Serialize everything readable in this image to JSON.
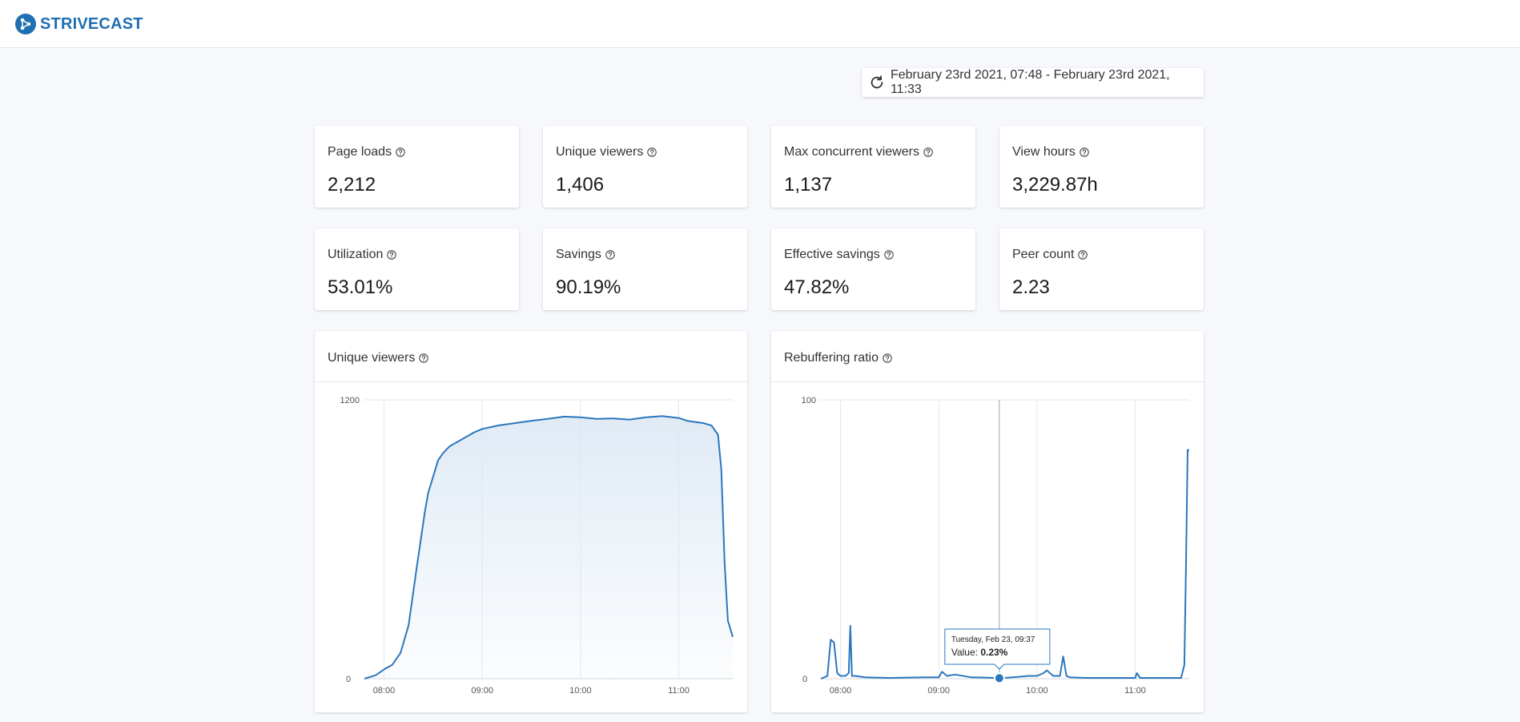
{
  "brand": {
    "name": "STRIVECAST"
  },
  "date_range": {
    "label": "February 23rd 2021, 07:48 - February 23rd 2021, 11:33",
    "icon": "refresh-icon"
  },
  "stats": [
    {
      "label": "Page loads",
      "value": "2,212"
    },
    {
      "label": "Unique viewers",
      "value": "1,406"
    },
    {
      "label": "Max concurrent viewers",
      "value": "1,137"
    },
    {
      "label": "View hours",
      "value": "3,229.87h"
    },
    {
      "label": "Utilization",
      "value": "53.01%"
    },
    {
      "label": "Savings",
      "value": "90.19%"
    },
    {
      "label": "Effective savings",
      "value": "47.82%"
    },
    {
      "label": "Peer count",
      "value": "2.23"
    }
  ],
  "colors": {
    "accent": "#1f6fb2",
    "line": "#2b77bd",
    "area": "#dbe7f3"
  },
  "chart_data": [
    {
      "type": "area",
      "title": "Unique viewers",
      "x_ticks": [
        "08:00",
        "09:00",
        "10:00",
        "11:00"
      ],
      "y_ticks": [
        "0",
        "1200"
      ],
      "ylim": [
        0,
        1200
      ],
      "xlim": [
        "07:48",
        "11:33"
      ],
      "x": [
        "07:48",
        "07:55",
        "08:00",
        "08:05",
        "08:10",
        "08:15",
        "08:20",
        "08:25",
        "08:27",
        "08:30",
        "08:33",
        "08:36",
        "08:40",
        "08:45",
        "08:50",
        "08:55",
        "09:00",
        "09:10",
        "09:20",
        "09:30",
        "09:40",
        "09:50",
        "10:00",
        "10:10",
        "10:20",
        "10:30",
        "10:40",
        "10:50",
        "11:00",
        "11:05",
        "11:10",
        "11:15",
        "11:20",
        "11:24",
        "11:26",
        "11:28",
        "11:30",
        "11:33"
      ],
      "values": [
        0,
        15,
        40,
        60,
        110,
        230,
        480,
        720,
        800,
        870,
        940,
        970,
        1000,
        1020,
        1040,
        1060,
        1075,
        1090,
        1100,
        1110,
        1118,
        1128,
        1125,
        1118,
        1120,
        1115,
        1125,
        1130,
        1122,
        1110,
        1105,
        1100,
        1090,
        1050,
        900,
        500,
        250,
        180
      ]
    },
    {
      "type": "line",
      "title": "Rebuffering ratio",
      "x_ticks": [
        "08:00",
        "09:00",
        "10:00",
        "11:00"
      ],
      "y_ticks": [
        "0",
        "100"
      ],
      "ylim": [
        0,
        100
      ],
      "xlim": [
        "07:48",
        "11:33"
      ],
      "x": [
        "07:48",
        "07:52",
        "07:54",
        "07:56",
        "07:58",
        "08:00",
        "08:03",
        "08:05",
        "08:06",
        "08:07",
        "08:09",
        "08:15",
        "08:30",
        "08:50",
        "09:00",
        "09:02",
        "09:05",
        "09:10",
        "09:20",
        "09:30",
        "09:37",
        "09:45",
        "09:55",
        "10:00",
        "10:04",
        "10:06",
        "10:10",
        "10:14",
        "10:16",
        "10:18",
        "10:20",
        "10:30",
        "10:50",
        "11:00",
        "11:01",
        "11:03",
        "11:20",
        "11:28",
        "11:30",
        "11:31",
        "11:32",
        "11:33"
      ],
      "values": [
        0,
        1,
        14,
        13,
        2,
        1,
        1,
        2,
        19,
        1,
        1,
        0.5,
        0.3,
        0.5,
        0.5,
        2.5,
        1,
        1.5,
        0.5,
        0.4,
        0.23,
        0.5,
        1,
        1,
        2,
        3,
        1,
        1,
        8,
        1,
        0.5,
        0.3,
        0.3,
        0.3,
        2,
        0.3,
        0.3,
        0.3,
        5,
        40,
        82,
        82
      ]
    }
  ],
  "tooltip": {
    "date": "Tuesday, Feb 23, 09:37",
    "value_label": "Value:",
    "value": "0.23%",
    "x": "09:37",
    "y": 0.23
  }
}
